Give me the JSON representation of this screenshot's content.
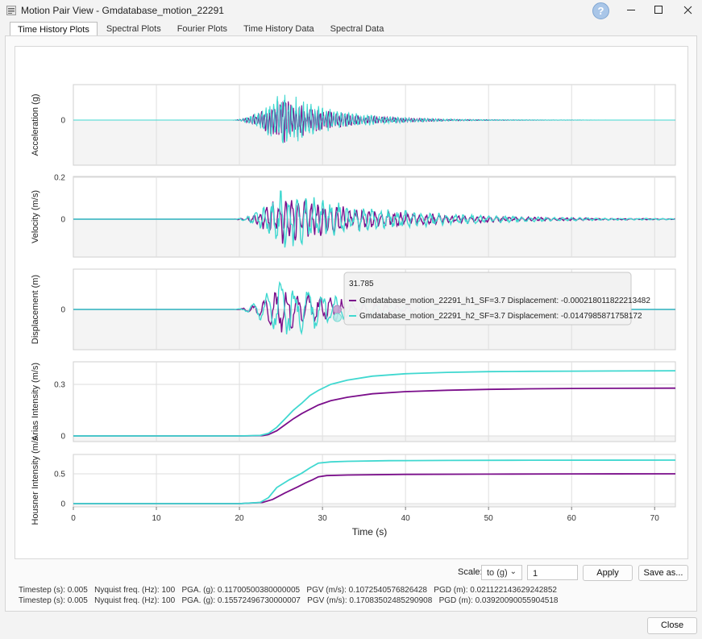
{
  "window": {
    "title": "Motion Pair View - Gmdatabase_motion_22291",
    "help_label": "?"
  },
  "tabs": [
    "Time History Plots",
    "Spectral Plots",
    "Fourier Plots",
    "Time History Data",
    "Spectral Data"
  ],
  "chart_data": {
    "type": "line",
    "xlabel": "Time (s)",
    "xlim": [
      0,
      72.5
    ],
    "x_ticks": [
      "0",
      "10",
      "20",
      "30",
      "40",
      "50",
      "60",
      "70"
    ],
    "series_names": [
      "Gmdatabase_motion_22291_h1_SF=3.7",
      "Gmdatabase_motion_22291_h2_SF=3.7"
    ],
    "series_colors": [
      "#7b0f8b",
      "#40d8d0"
    ],
    "panels": [
      {
        "ylabel": "Acceleration (g)",
        "y_ticks": [
          "0"
        ]
      },
      {
        "ylabel": "Velocity (m/s)",
        "y_ticks": [
          "0.2",
          "0"
        ]
      },
      {
        "ylabel": "Displacement (m)",
        "y_ticks": [
          "0"
        ]
      },
      {
        "ylabel": "Arias Intensity (m/s)",
        "y_ticks": [
          "0.3",
          "0"
        ],
        "series": [
          {
            "name": "Gmdatabase_motion_22291_h1_SF=3.7",
            "x": [
              0,
              20,
              22.8,
              23.5,
              24.5,
              25.5,
              26.5,
              27.5,
              28.5,
              29.5,
              31,
              33,
              36,
              40,
              45,
              50,
              55,
              60,
              65,
              72.5
            ],
            "values": [
              0,
              0,
              0.002,
              0.008,
              0.03,
              0.065,
              0.1,
              0.13,
              0.155,
              0.18,
              0.205,
              0.225,
              0.245,
              0.258,
              0.266,
              0.271,
              0.274,
              0.276,
              0.277,
              0.278
            ]
          },
          {
            "name": "Gmdatabase_motion_22291_h2_SF=3.7",
            "x": [
              0,
              20,
              22.5,
              23.5,
              24.5,
              25.5,
              26.5,
              27.5,
              28.5,
              29.5,
              31,
              33,
              36,
              40,
              45,
              50,
              55,
              60,
              65,
              72.5
            ],
            "values": [
              0,
              0,
              0.003,
              0.015,
              0.05,
              0.1,
              0.15,
              0.19,
              0.235,
              0.265,
              0.3,
              0.325,
              0.348,
              0.362,
              0.37,
              0.374,
              0.376,
              0.377,
              0.378,
              0.379
            ]
          }
        ]
      },
      {
        "ylabel": "Housner Intensity (m/s",
        "y_ticks": [
          "0.5",
          "0"
        ],
        "series": [
          {
            "name": "Gmdatabase_motion_22291_h1_SF=3.7",
            "x": [
              0,
              20,
              22.8,
              24,
              25.5,
              27,
              28,
              28.8,
              29.5,
              30.5,
              33,
              40,
              50,
              60,
              72.5
            ],
            "values": [
              0,
              0,
              0.02,
              0.07,
              0.18,
              0.28,
              0.35,
              0.4,
              0.45,
              0.47,
              0.48,
              0.49,
              0.495,
              0.498,
              0.5
            ]
          },
          {
            "name": "Gmdatabase_motion_22291_h2_SF=3.7",
            "x": [
              0,
              20,
              22.5,
              23.5,
              24.5,
              26,
              27.5,
              28.5,
              29.5,
              31,
              33,
              38,
              45,
              55,
              72.5
            ],
            "values": [
              0,
              0,
              0.02,
              0.1,
              0.27,
              0.4,
              0.51,
              0.6,
              0.68,
              0.7,
              0.71,
              0.72,
              0.725,
              0.728,
              0.73
            ]
          }
        ]
      }
    ],
    "tooltip": {
      "x_value": "31.785",
      "lines": [
        "Gmdatabase_motion_22291_h1_SF=3.7 Displacement: -0.000218011822213482",
        "Gmdatabase_motion_22291_h2_SF=3.7 Displacement: -0.0147985871758172"
      ]
    }
  },
  "controls": {
    "scale_label": "Scale:",
    "scale_unit": "to (g)",
    "scale_value": "1",
    "apply_label": "Apply",
    "save_label": "Save as...",
    "close_label": "Close"
  },
  "info_lines": [
    "Timestep (s): 0.005   Nyquist freq. (Hz): 100   PGA. (g): 0.11700500380000005   PGV (m/s): 0.1072540576826428   PGD (m): 0.021122143629242852",
    "Timestep (s): 0.005   Nyquist freq. (Hz): 100   PGA. (g): 0.15572496730000007   PGV (m/s): 0.17083502485290908   PGD (m): 0.03920090055904518"
  ]
}
